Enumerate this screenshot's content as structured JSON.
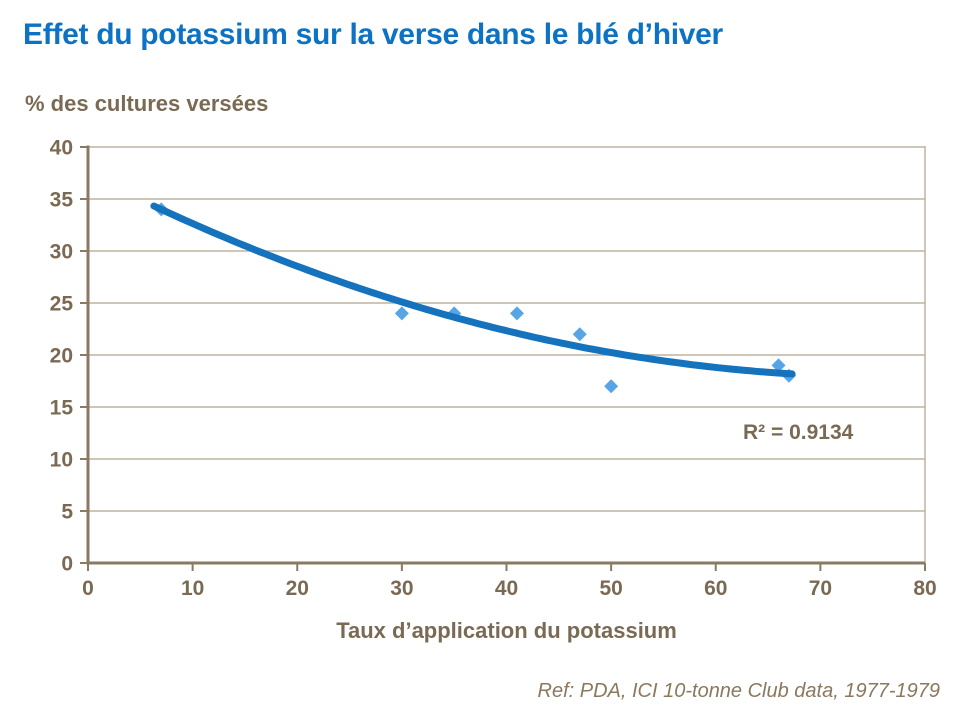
{
  "page": {
    "title": "Effet du potassium sur la verse dans le blé d’hiver",
    "footer": "Ref: PDA, ICI 10-tonne Club data, 1977-1979"
  },
  "chart_data": {
    "type": "scatter",
    "title": "Effet du potassium sur la verse dans le blé d’hiver",
    "xlabel": "Taux d’application du potassium",
    "ylabel": "% des cultures versées",
    "xlim": [
      0,
      80
    ],
    "ylim": [
      0,
      40
    ],
    "x_ticks": [
      0,
      10,
      20,
      30,
      40,
      50,
      60,
      70,
      80
    ],
    "y_ticks": [
      0,
      5,
      10,
      15,
      20,
      25,
      30,
      35,
      40
    ],
    "points": [
      [
        7,
        34
      ],
      [
        30,
        24
      ],
      [
        35,
        24
      ],
      [
        41,
        24
      ],
      [
        47,
        22
      ],
      [
        50,
        17
      ],
      [
        66,
        19
      ],
      [
        67,
        18
      ]
    ],
    "trendline": {
      "type": "polynomial",
      "order": 2,
      "equation": "y = 0.00334x² − 0.5106x + 37.41",
      "a": 0.003341,
      "b": -0.51057,
      "c": 37.41,
      "x_start": 6.3,
      "x_end": 67.4
    },
    "r2_label": "R² = 0.9134",
    "grid": "horizontal gridlines, plot framed top and right",
    "legend": "none",
    "colors": {
      "title_text": "#0B72C4",
      "axis_text": "#7A6A54",
      "footer_text": "#8A785F",
      "axis_line": "#8A7A63",
      "gridline": "#BFB4A4",
      "marker": "#57A5E5",
      "trendline": "#1572BC"
    }
  }
}
